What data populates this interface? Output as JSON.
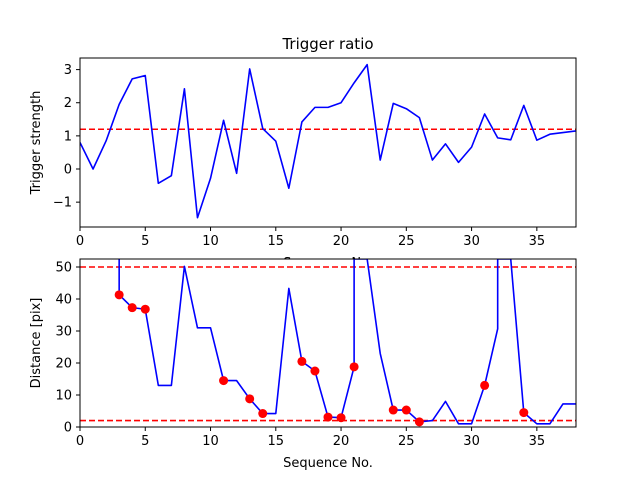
{
  "colors": {
    "line": "#0000ff",
    "threshold": "#ff0000",
    "marker": "#ff0000",
    "axes": "#000000",
    "background": "#ffffff"
  },
  "chart_data": [
    {
      "type": "line",
      "title": "Trigger ratio",
      "xlabel": "Sequence No.",
      "ylabel": "Trigger strength",
      "xlim": [
        0,
        38
      ],
      "ylim": [
        -1.75,
        3.35
      ],
      "xticks": [
        0,
        5,
        10,
        15,
        20,
        25,
        30,
        35
      ],
      "yticks": [
        -1,
        0,
        1,
        2,
        3
      ],
      "ytick_labels": [
        "−1",
        "0",
        "1",
        "2",
        "3"
      ],
      "grid": false,
      "series": [
        {
          "x": [
            0,
            1,
            2,
            3,
            4,
            5,
            6,
            7,
            8,
            9,
            10,
            11,
            12,
            13,
            14,
            15,
            16,
            17,
            18,
            19,
            20,
            21,
            22,
            23,
            24,
            25,
            26,
            27,
            28,
            29,
            30,
            31,
            32,
            33,
            34,
            35,
            36,
            37,
            38
          ],
          "y": [
            0.8,
            0.0,
            0.85,
            1.95,
            2.72,
            2.82,
            -0.43,
            -0.2,
            2.42,
            -1.47,
            -0.28,
            1.47,
            -0.13,
            3.02,
            1.22,
            0.84,
            -0.58,
            1.42,
            1.86,
            1.86,
            2.0,
            2.6,
            3.15,
            0.27,
            1.98,
            1.82,
            1.55,
            0.27,
            0.76,
            0.2,
            0.66,
            1.66,
            0.94,
            0.88,
            1.92,
            0.87,
            1.05,
            1.1,
            1.15
          ]
        }
      ],
      "hlines": [
        1.2
      ]
    },
    {
      "type": "line",
      "title": "",
      "xlabel": "Sequence No.",
      "ylabel": "Distance [pix]",
      "xlim": [
        0,
        38
      ],
      "ylim": [
        0,
        52.5
      ],
      "xticks": [
        0,
        5,
        10,
        15,
        20,
        25,
        30,
        35
      ],
      "yticks": [
        0,
        10,
        20,
        30,
        40,
        50
      ],
      "grid": false,
      "series": [
        {
          "x": [
            3,
            3,
            4,
            5,
            6,
            7,
            8,
            9,
            10,
            11,
            12,
            13,
            14,
            15,
            16,
            17,
            18,
            19,
            20,
            21,
            21,
            22,
            23,
            24,
            25,
            26,
            27,
            28,
            29,
            30,
            31,
            32,
            32,
            33,
            34,
            35,
            36,
            37,
            38
          ],
          "y": [
            52.5,
            41.3,
            37.3,
            36.8,
            13.0,
            13.0,
            50.2,
            31.0,
            31.0,
            14.5,
            14.5,
            8.8,
            4.2,
            4.2,
            43.3,
            20.5,
            17.5,
            3.1,
            2.9,
            18.8,
            52.5,
            52.5,
            23.0,
            5.3,
            5.3,
            1.6,
            2.0,
            8.0,
            1.0,
            1.0,
            13.0,
            30.7,
            52.5,
            52.5,
            4.5,
            1.0,
            1.0,
            7.2,
            7.2
          ]
        }
      ],
      "markers": {
        "x": [
          3,
          4,
          5,
          11,
          13,
          14,
          17,
          18,
          19,
          20,
          21,
          24,
          25,
          26,
          31,
          34
        ],
        "y": [
          41.3,
          37.3,
          36.8,
          14.5,
          8.8,
          4.2,
          20.5,
          17.5,
          3.1,
          2.9,
          18.8,
          5.3,
          5.3,
          1.6,
          13.0,
          4.5
        ]
      },
      "hlines": [
        50,
        2
      ]
    }
  ]
}
